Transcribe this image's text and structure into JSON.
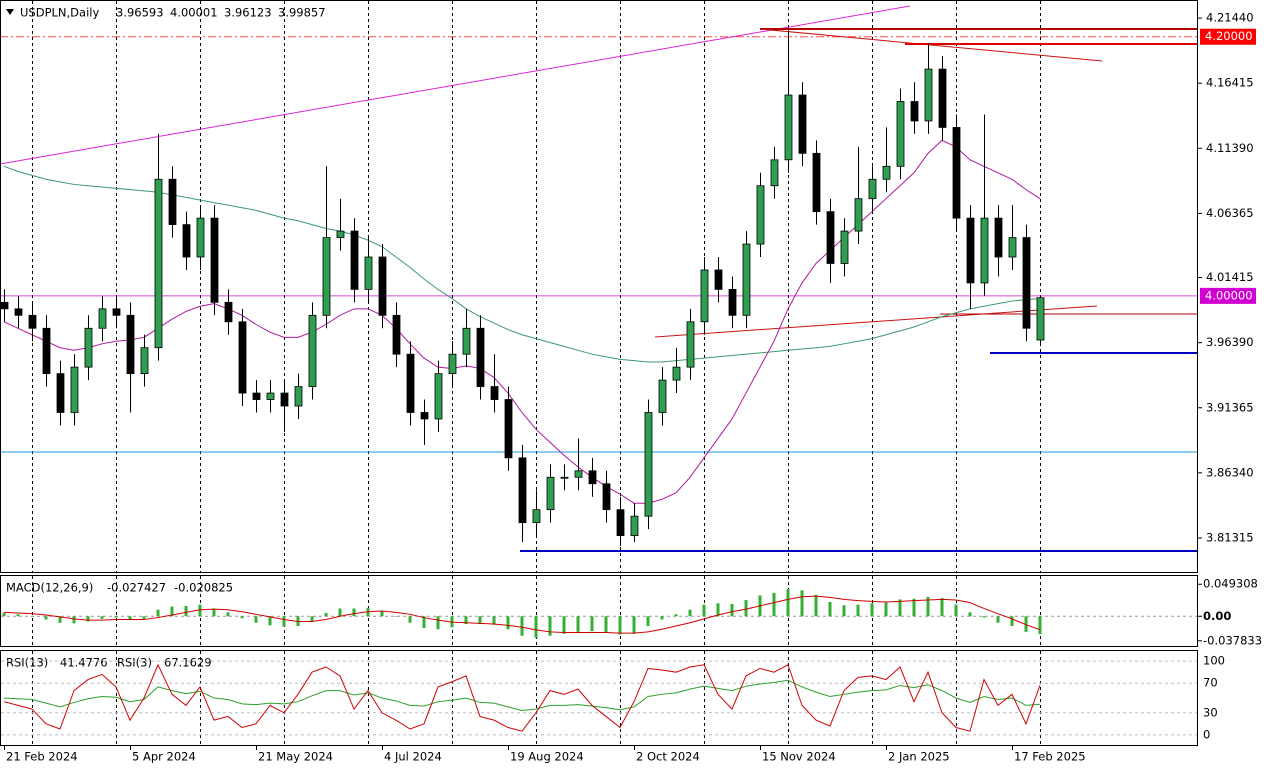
{
  "chart_data": {
    "type": "candlestick",
    "symbol": "USDPLN,Daily",
    "categories": [
      "21 Feb 2024",
      null,
      null,
      null,
      null,
      null,
      null,
      null,
      null,
      "5 Apr 2024",
      null,
      null,
      null,
      null,
      null,
      null,
      null,
      null,
      "21 May 2024",
      null,
      null,
      null,
      null,
      null,
      null,
      null,
      null,
      "4 Jul 2024",
      null,
      null,
      null,
      null,
      null,
      null,
      null,
      null,
      "19 Aug 2024",
      null,
      null,
      null,
      null,
      null,
      null,
      null,
      null,
      "2 Oct 2024",
      null,
      null,
      null,
      null,
      null,
      null,
      null,
      null,
      "15 Nov 2024",
      null,
      null,
      null,
      null,
      null,
      null,
      null,
      null,
      "2 Jan 2025",
      null,
      null,
      null,
      null,
      null,
      null,
      null,
      null,
      "17 Feb 2025",
      null,
      null
    ],
    "open": [
      3.995,
      3.99,
      3.985,
      3.975,
      3.94,
      3.91,
      3.945,
      3.975,
      3.99,
      3.985,
      3.94,
      3.96,
      4.09,
      4.055,
      4.03,
      4.06,
      3.995,
      3.98,
      3.925,
      3.92,
      3.925,
      3.915,
      3.93,
      3.985,
      4.045,
      4.05,
      4.005,
      4.03,
      3.985,
      3.955,
      3.91,
      3.905,
      3.94,
      3.955,
      3.975,
      3.93,
      3.92,
      3.875,
      3.825,
      3.835,
      3.86,
      3.86,
      3.865,
      3.855,
      3.835,
      3.815,
      3.83,
      3.91,
      3.935,
      3.945,
      3.98,
      4.02,
      4.005,
      3.985,
      4.04,
      4.085,
      4.105,
      4.155,
      4.11,
      4.065,
      4.025,
      4.05,
      4.075,
      4.09,
      4.1,
      4.15,
      4.135,
      4.175,
      4.13,
      4.06,
      4.01,
      4.06,
      4.03,
      4.045,
      3.96593
    ],
    "high": [
      4.005,
      4.0,
      3.995,
      3.985,
      3.95,
      3.955,
      3.985,
      4.0,
      4.0,
      3.995,
      3.97,
      4.125,
      4.1,
      4.065,
      4.07,
      4.07,
      4.005,
      3.99,
      3.935,
      3.935,
      3.935,
      3.94,
      3.995,
      4.1,
      4.075,
      4.06,
      4.045,
      4.04,
      3.995,
      3.965,
      3.92,
      3.95,
      3.965,
      3.99,
      3.985,
      3.955,
      3.93,
      3.885,
      3.85,
      3.87,
      3.87,
      3.89,
      3.875,
      3.865,
      3.845,
      3.84,
      3.92,
      3.945,
      3.96,
      3.99,
      4.03,
      4.03,
      4.015,
      4.05,
      4.095,
      4.115,
      4.205,
      4.165,
      4.12,
      4.075,
      4.06,
      4.115,
      4.1,
      4.13,
      4.16,
      4.165,
      4.195,
      4.185,
      4.14,
      4.07,
      4.14,
      4.07,
      4.07,
      4.055,
      4.00001
    ],
    "low": [
      3.98,
      3.975,
      3.965,
      3.93,
      3.9,
      3.9,
      3.935,
      3.965,
      3.975,
      3.91,
      3.93,
      3.95,
      4.045,
      4.02,
      4.02,
      3.985,
      3.97,
      3.915,
      3.91,
      3.91,
      3.895,
      3.905,
      3.92,
      3.975,
      4.035,
      3.995,
      3.995,
      3.975,
      3.945,
      3.9,
      3.885,
      3.895,
      3.93,
      3.945,
      3.92,
      3.91,
      3.865,
      3.81,
      3.815,
      3.825,
      3.85,
      3.85,
      3.845,
      3.825,
      3.807,
      3.81,
      3.82,
      3.9,
      3.925,
      3.935,
      3.97,
      3.995,
      3.975,
      3.975,
      4.03,
      4.075,
      4.095,
      4.1,
      4.055,
      4.01,
      4.015,
      4.04,
      4.065,
      4.08,
      4.09,
      4.125,
      4.125,
      4.12,
      4.05,
      3.99,
      4.0,
      4.015,
      4.02,
      3.965,
      3.96123
    ],
    "close": [
      3.99,
      3.985,
      3.975,
      3.94,
      3.91,
      3.945,
      3.975,
      3.99,
      3.985,
      3.94,
      3.96,
      4.09,
      4.055,
      4.03,
      4.06,
      3.995,
      3.98,
      3.925,
      3.92,
      3.925,
      3.915,
      3.93,
      3.985,
      4.045,
      4.05,
      4.005,
      4.03,
      3.985,
      3.955,
      3.91,
      3.905,
      3.94,
      3.955,
      3.975,
      3.93,
      3.92,
      3.875,
      3.825,
      3.835,
      3.86,
      3.86,
      3.865,
      3.855,
      3.835,
      3.815,
      3.83,
      3.91,
      3.935,
      3.945,
      3.98,
      4.02,
      4.005,
      3.985,
      4.04,
      4.085,
      4.105,
      4.155,
      4.11,
      4.065,
      4.025,
      4.05,
      4.075,
      4.09,
      4.1,
      4.15,
      4.135,
      4.175,
      4.13,
      4.06,
      4.01,
      4.06,
      4.03,
      4.045,
      3.975,
      3.99857
    ],
    "bull_color": "#2e9e4f",
    "bear_color": "#000000",
    "overlays": [
      {
        "color": "#3a9a6a",
        "values": [
          4.1,
          4.096,
          4.093,
          4.09,
          4.088,
          4.086,
          4.085,
          4.084,
          4.083,
          4.082,
          4.081,
          4.08,
          4.078,
          4.076,
          4.074,
          4.072,
          4.07,
          4.068,
          4.066,
          4.063,
          4.06,
          4.058,
          4.055,
          4.052,
          4.05,
          4.047,
          4.043,
          4.038,
          4.03,
          4.022,
          4.013,
          4.005,
          3.998,
          3.99,
          3.984,
          3.979,
          3.974,
          3.97,
          3.967,
          3.964,
          3.961,
          3.958,
          3.955,
          3.953,
          3.951,
          3.95,
          3.949,
          3.949,
          3.95,
          3.951,
          3.952,
          3.953,
          3.954,
          3.955,
          3.956,
          3.957,
          3.958,
          3.959,
          3.96,
          3.961,
          3.963,
          3.965,
          3.967,
          3.97,
          3.973,
          3.976,
          3.98,
          3.984,
          3.987,
          3.99,
          3.992,
          3.994,
          3.996,
          3.997,
          3.998
        ]
      },
      {
        "color": "#b0179f",
        "values": [
          3.98,
          3.975,
          3.97,
          3.965,
          3.96,
          3.958,
          3.96,
          3.963,
          3.965,
          3.966,
          3.968,
          3.975,
          3.982,
          3.988,
          3.992,
          3.994,
          3.99,
          3.985,
          3.978,
          3.972,
          3.968,
          3.968,
          3.972,
          3.978,
          3.985,
          3.99,
          3.99,
          3.985,
          3.975,
          3.963,
          3.952,
          3.945,
          3.944,
          3.946,
          3.944,
          3.937,
          3.925,
          3.91,
          3.897,
          3.887,
          3.877,
          3.868,
          3.86,
          3.853,
          3.847,
          3.84,
          3.84,
          3.843,
          3.848,
          3.86,
          3.875,
          3.89,
          3.905,
          3.925,
          3.945,
          3.965,
          3.99,
          4.01,
          4.025,
          4.035,
          4.045,
          4.055,
          4.065,
          4.075,
          4.085,
          4.095,
          4.11,
          4.12,
          4.115,
          4.105,
          4.1,
          4.095,
          4.09,
          4.082,
          4.075
        ]
      }
    ],
    "levels": [
      {
        "value": 4.2,
        "label": "4.20000",
        "color": "#ff0000"
      },
      {
        "value": 4,
        "label": "4.00000",
        "color": "#d000d0"
      }
    ],
    "ylim": [
      3.7869,
      4.2268
    ],
    "yticks": [
      {
        "value": 4.2144,
        "label": "4.21440"
      },
      4.16415,
      {
        "value": 4.1139,
        "label": "4.11390"
      },
      4.06365,
      4.01415,
      {
        "value": 3.9639,
        "label": "3.96390"
      },
      3.91365,
      {
        "value": 3.8634,
        "label": "3.86340"
      },
      3.81315
    ],
    "macd": {
      "title": "MACD(12,26,9)",
      "histogram": {
        "color": "#33b033",
        "values": [
          0.005,
          0.003,
          0.0,
          -0.005,
          -0.01,
          -0.011,
          -0.008,
          -0.004,
          -0.002,
          -0.006,
          -0.004,
          0.01,
          0.015,
          0.016,
          0.018,
          0.012,
          0.006,
          -0.003,
          -0.01,
          -0.014,
          -0.016,
          -0.015,
          -0.008,
          0.005,
          0.012,
          0.012,
          0.013,
          0.008,
          0.0,
          -0.01,
          -0.018,
          -0.02,
          -0.017,
          -0.012,
          -0.012,
          -0.013,
          -0.02,
          -0.03,
          -0.033,
          -0.03,
          -0.027,
          -0.024,
          -0.023,
          -0.025,
          -0.028,
          -0.027,
          -0.015,
          -0.005,
          0.003,
          0.01,
          0.018,
          0.02,
          0.019,
          0.025,
          0.032,
          0.036,
          0.042,
          0.04,
          0.033,
          0.022,
          0.017,
          0.018,
          0.02,
          0.021,
          0.026,
          0.027,
          0.03,
          0.028,
          0.018,
          0.006,
          -0.002,
          -0.01,
          -0.015,
          -0.024,
          -0.027427
        ]
      },
      "signal": {
        "color": "#d00000",
        "values": [
          0.006,
          0.005,
          0.004,
          0.002,
          -0.001,
          -0.004,
          -0.006,
          -0.006,
          -0.005,
          -0.005,
          -0.005,
          -0.002,
          0.002,
          0.006,
          0.01,
          0.011,
          0.01,
          0.007,
          0.003,
          -0.001,
          -0.005,
          -0.008,
          -0.008,
          -0.005,
          0.0,
          0.004,
          0.007,
          0.008,
          0.006,
          0.003,
          -0.002,
          -0.006,
          -0.009,
          -0.01,
          -0.011,
          -0.012,
          -0.014,
          -0.017,
          -0.021,
          -0.024,
          -0.025,
          -0.025,
          -0.025,
          -0.025,
          -0.026,
          -0.026,
          -0.024,
          -0.02,
          -0.015,
          -0.01,
          -0.004,
          0.002,
          0.007,
          0.011,
          0.016,
          0.021,
          0.026,
          0.03,
          0.031,
          0.029,
          0.026,
          0.024,
          0.023,
          0.022,
          0.023,
          0.024,
          0.025,
          0.026,
          0.025,
          0.021,
          0.012,
          0.004,
          -0.004,
          -0.013,
          -0.020825
        ]
      },
      "ylim": [
        -0.0458,
        0.062
      ],
      "yticks": [
        0.049308,
        {
          "value": 0,
          "label": "0.00"
        },
        -0.037833
      ]
    },
    "rsi": {
      "series": [
        {
          "name": "RSI(13)",
          "color": "#2ca02c",
          "values": [
            50,
            49,
            48,
            43,
            38,
            44,
            49,
            52,
            51,
            45,
            48,
            65,
            60,
            56,
            59,
            50,
            48,
            42,
            41,
            43,
            42,
            45,
            53,
            60,
            60,
            54,
            57,
            50,
            46,
            40,
            39,
            45,
            47,
            50,
            44,
            43,
            38,
            33,
            35,
            40,
            40,
            41,
            39,
            37,
            34,
            38,
            52,
            55,
            57,
            62,
            66,
            63,
            60,
            66,
            69,
            71,
            74,
            65,
            58,
            52,
            55,
            58,
            60,
            61,
            67,
            64,
            68,
            60,
            50,
            44,
            52,
            48,
            50,
            40,
            41.4776
          ]
        },
        {
          "name": "RSI(3)",
          "color": "#d00000",
          "values": [
            45,
            40,
            35,
            15,
            8,
            60,
            75,
            82,
            65,
            20,
            50,
            95,
            55,
            40,
            65,
            20,
            25,
            10,
            15,
            40,
            30,
            55,
            85,
            92,
            80,
            35,
            60,
            30,
            20,
            8,
            15,
            65,
            72,
            80,
            25,
            20,
            10,
            5,
            30,
            60,
            55,
            62,
            40,
            25,
            10,
            45,
            90,
            88,
            85,
            92,
            95,
            55,
            35,
            80,
            90,
            85,
            95,
            40,
            20,
            12,
            60,
            78,
            80,
            75,
            92,
            45,
            85,
            30,
            10,
            5,
            75,
            40,
            55,
            15,
            67.1629
          ]
        }
      ],
      "ylim": [
        -13.7,
        113.7
      ],
      "yticks": [
        100,
        70,
        30,
        0
      ]
    }
  }
}
